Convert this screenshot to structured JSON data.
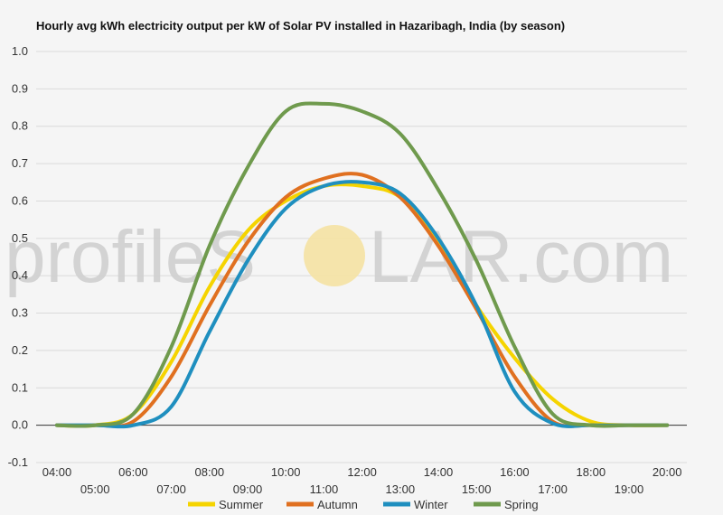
{
  "chart_data": {
    "type": "line",
    "title": "Hourly avg kWh electricity output per kW of Solar PV installed in Hazaribagh, India (by season)",
    "xlabel": "",
    "ylabel": "",
    "x": [
      "04:00",
      "05:00",
      "06:00",
      "07:00",
      "08:00",
      "09:00",
      "10:00",
      "11:00",
      "12:00",
      "13:00",
      "14:00",
      "15:00",
      "16:00",
      "17:00",
      "18:00",
      "19:00",
      "20:00"
    ],
    "y_ticks": [
      "-0.1",
      "0.0",
      "0.1",
      "0.2",
      "0.3",
      "0.4",
      "0.5",
      "0.6",
      "0.7",
      "0.8",
      "0.9",
      "1.0"
    ],
    "ylim": [
      -0.1,
      1.0
    ],
    "grid": true,
    "legend_position": "bottom",
    "series": [
      {
        "name": "Summer",
        "color": "#f5d400",
        "values": [
          0,
          0,
          0.03,
          0.17,
          0.37,
          0.52,
          0.6,
          0.64,
          0.64,
          0.61,
          0.49,
          0.32,
          0.18,
          0.07,
          0.01,
          0,
          0
        ]
      },
      {
        "name": "Autumn",
        "color": "#e07020",
        "values": [
          0,
          0,
          0.01,
          0.13,
          0.32,
          0.49,
          0.61,
          0.66,
          0.67,
          0.61,
          0.48,
          0.31,
          0.13,
          0.01,
          0,
          0,
          0
        ]
      },
      {
        "name": "Winter",
        "color": "#1f8fbf",
        "values": [
          0,
          0,
          0,
          0.05,
          0.25,
          0.44,
          0.58,
          0.64,
          0.65,
          0.62,
          0.5,
          0.32,
          0.09,
          0.005,
          0,
          0,
          0
        ]
      },
      {
        "name": "Spring",
        "color": "#6f9a4d",
        "values": [
          0,
          0,
          0.03,
          0.21,
          0.48,
          0.69,
          0.84,
          0.86,
          0.84,
          0.78,
          0.63,
          0.44,
          0.21,
          0.03,
          0,
          0,
          0
        ]
      }
    ]
  },
  "watermark": {
    "left": "profileS",
    "right": "LAR.com",
    "sun_color": "#f6e3a3"
  }
}
